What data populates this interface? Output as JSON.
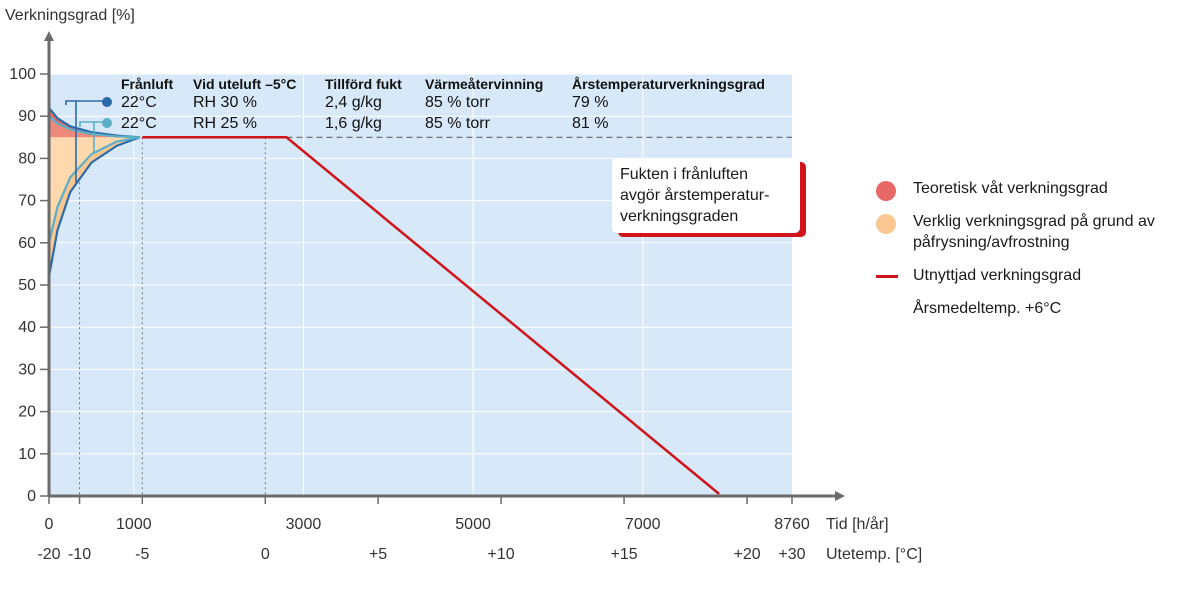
{
  "chart_data": {
    "type": "line",
    "ylabel": "Verkningsgrad [%]",
    "ylim": [
      0,
      100
    ],
    "yticks": [
      "0",
      "10",
      "20",
      "30",
      "40",
      "50",
      "60",
      "70",
      "80",
      "90",
      "100"
    ],
    "xlabel": "Tid [h/år]",
    "xlim": [
      0,
      8760
    ],
    "xticks": [
      {
        "value": 0,
        "label": "0"
      },
      {
        "value": 1000,
        "label": "1000"
      },
      {
        "value": 3000,
        "label": "3000"
      },
      {
        "value": 5000,
        "label": "5000"
      },
      {
        "value": 7000,
        "label": "7000"
      },
      {
        "value": 8760,
        "label": "8760"
      }
    ],
    "x2label": "Utetemp. [°C]",
    "x2ticks": [
      {
        "value": 0,
        "label": "-20"
      },
      {
        "value": 360,
        "label": "-10"
      },
      {
        "value": 1100,
        "label": "-5"
      },
      {
        "value": 2550,
        "label": "0"
      },
      {
        "value": 3880,
        "label": "+5"
      },
      {
        "value": 5330,
        "label": "+10"
      },
      {
        "value": 6780,
        "label": "+15"
      },
      {
        "value": 8230,
        "label": "+20"
      },
      {
        "value": 8760,
        "label": "+30"
      }
    ],
    "reference_line": {
      "y": 85,
      "style": "dashed"
    },
    "series": [
      {
        "name": "Utnyttjad verkningsgrad",
        "color": "#d0141b",
        "points": [
          [
            1100,
            85
          ],
          [
            2800,
            85
          ],
          [
            7900,
            0.5
          ]
        ]
      },
      {
        "color": "#2c6aa8",
        "points": [
          [
            0,
            92
          ],
          [
            100,
            89.5
          ],
          [
            250,
            87.6
          ],
          [
            500,
            86.2
          ],
          [
            800,
            85.4
          ],
          [
            1070,
            85
          ]
        ]
      },
      {
        "color": "#2c6aa8",
        "points": [
          [
            0,
            52
          ],
          [
            100,
            63
          ],
          [
            250,
            72
          ],
          [
            500,
            79
          ],
          [
            800,
            83
          ],
          [
            1070,
            85
          ]
        ]
      },
      {
        "color": "#5aafc8",
        "points": [
          [
            0,
            90
          ],
          [
            100,
            88.3
          ],
          [
            250,
            86.9
          ],
          [
            500,
            85.8
          ],
          [
            800,
            85.2
          ],
          [
            1070,
            85
          ]
        ]
      },
      {
        "color": "#5aafc8",
        "points": [
          [
            0,
            60
          ],
          [
            100,
            68.5
          ],
          [
            250,
            75.5
          ],
          [
            500,
            81
          ],
          [
            800,
            84
          ],
          [
            1070,
            85
          ]
        ]
      }
    ],
    "table": {
      "headers": [
        "Frånluft",
        "Vid uteluft –5°C",
        "Tillförd fukt",
        "Värmeåtervinning",
        "Årstemperaturverkningsgrad"
      ],
      "rows": [
        {
          "color": "#2c6aa8",
          "cells": [
            "22°C",
            "RH 30 %",
            "2,4 g/kg",
            "85 % torr",
            "79 %"
          ]
        },
        {
          "color": "#5aafc8",
          "cells": [
            "22°C",
            "RH 25 %",
            "1,6 g/kg",
            "85 % torr",
            "81 %"
          ]
        }
      ]
    },
    "callout": [
      "Fukten i frånluften",
      "avgör årstemperatur-",
      "verkningsgraden"
    ],
    "legend": [
      {
        "label": "Teoretisk våt verkningsgrad",
        "color": "#e76866",
        "kind": "dot"
      },
      {
        "label": "Verklig verkningsgrad på grund av påfrysning/avfrostning",
        "color": "#fbc791",
        "kind": "dot"
      },
      {
        "label": "Utnyttjad verkningsgrad",
        "color": "#d0141b",
        "kind": "line"
      },
      {
        "label": "Årsmedeltemp. +6°C",
        "kind": "text"
      }
    ]
  }
}
